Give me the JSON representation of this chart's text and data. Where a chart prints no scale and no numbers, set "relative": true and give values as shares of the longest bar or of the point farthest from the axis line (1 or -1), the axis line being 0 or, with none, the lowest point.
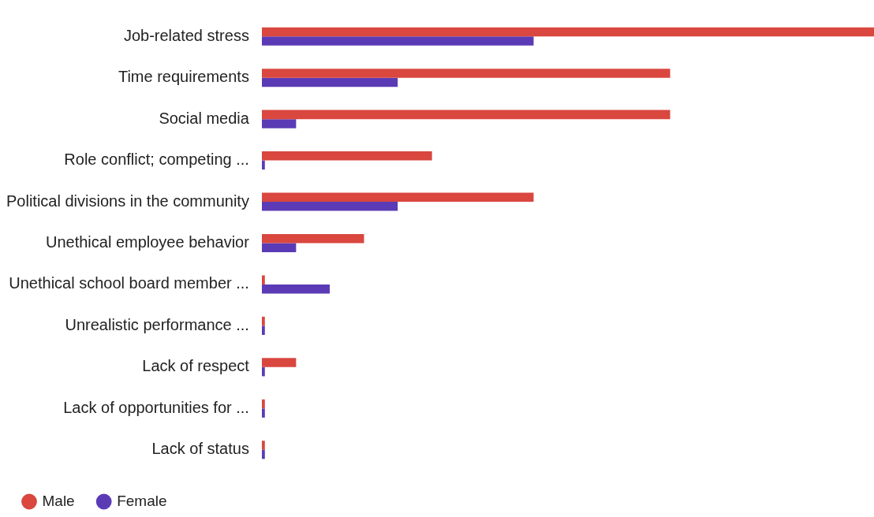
{
  "chart_data": {
    "type": "bar",
    "orientation": "horizontal",
    "relative": true,
    "legend": "bottom left",
    "categories": [
      "Job-related stress",
      "Time requirements",
      "Social media",
      "Role conflict; competing ...",
      "Political divisions in the community",
      "Unethical employee behavior",
      "Unethical school board member ...",
      "Unrealistic performance ...",
      "Lack of respect",
      "Lack of opportunities for ...",
      "Lack of status"
    ],
    "series": [
      {
        "name": "Male",
        "color": "#d9473f",
        "values": [
          1,
          0.667,
          0.667,
          0.278,
          0.444,
          0.167,
          0.005,
          0.005,
          0.056,
          0.005,
          0.005
        ]
      },
      {
        "name": "Female",
        "color": "#5b3bb5",
        "values": [
          0.444,
          0.222,
          0.056,
          0.005,
          0.222,
          0.056,
          0.111,
          0.005,
          0.005,
          0.005,
          0.005
        ]
      }
    ]
  }
}
